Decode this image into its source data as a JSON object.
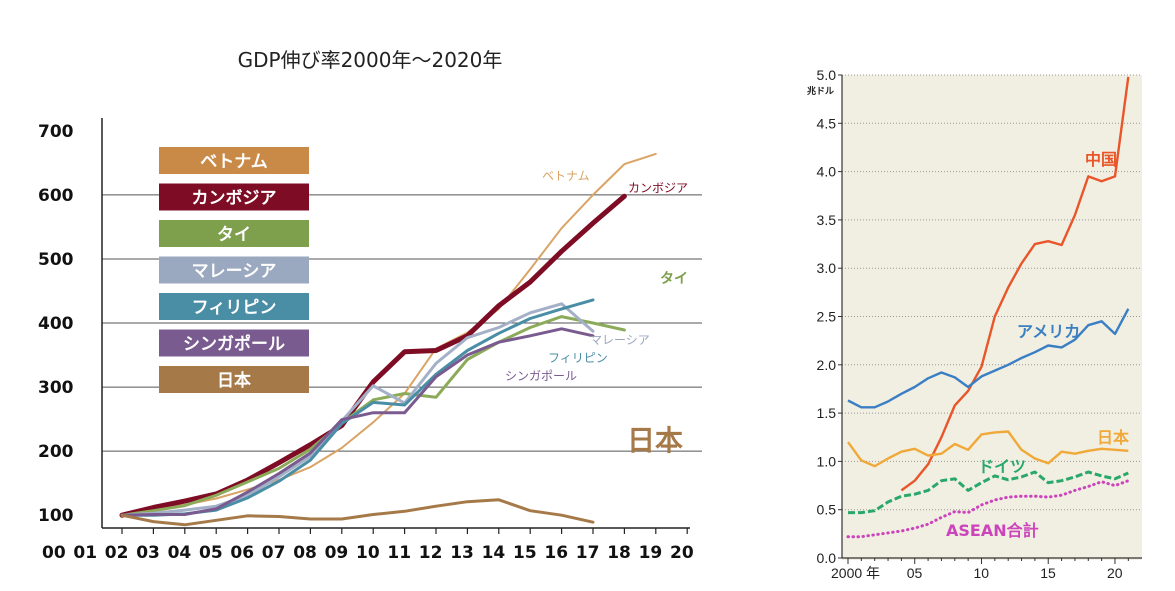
{
  "chart_data": [
    {
      "type": "line",
      "title": "GDP伸び率2000年～2020年",
      "x_tick_labels": [
        "00",
        "01",
        "02",
        "03",
        "04",
        "05",
        "06",
        "07",
        "08",
        "09",
        "10",
        "11",
        "12",
        "13",
        "14",
        "15",
        "16",
        "17",
        "18",
        "19",
        "20"
      ],
      "x": [
        2,
        3,
        4,
        5,
        6,
        7,
        8,
        9,
        10,
        11,
        12,
        13,
        14,
        15,
        16,
        17,
        18,
        19,
        20
      ],
      "y_ticks": [
        100,
        200,
        300,
        400,
        500,
        600,
        700
      ],
      "ylim": [
        80,
        720
      ],
      "grid": "horizontal",
      "legend": {
        "position": "top-left",
        "entries": [
          {
            "label": "ベトナム",
            "color": "#c98a48"
          },
          {
            "label": "カンボジア",
            "color": "#7d0c24"
          },
          {
            "label": "タイ",
            "color": "#7e9f4c"
          },
          {
            "label": "マレーシア",
            "color": "#9aa8c0"
          },
          {
            "label": "フィリピン",
            "color": "#4a8ea6"
          },
          {
            "label": "シンガポール",
            "color": "#7a5b90"
          },
          {
            "label": "日本",
            "color": "#a57a48"
          }
        ]
      },
      "series": [
        {
          "name": "ベトナム",
          "color": "#d9a466",
          "width": 2,
          "label": "ベトナム",
          "values": [
            100,
            110,
            116,
            126,
            140,
            155,
            175,
            205,
            245,
            290,
            360,
            385,
            422,
            484,
            548,
            600,
            648,
            664,
            null
          ]
        },
        {
          "name": "カンボジア",
          "color": "#7d0c24",
          "width": 5,
          "label": "カンボジア",
          "values": [
            100,
            112,
            122,
            133,
            155,
            182,
            210,
            240,
            308,
            355,
            357,
            380,
            427,
            464,
            512,
            556,
            598,
            null,
            null
          ]
        },
        {
          "name": "タイ",
          "color": "#8cab5a",
          "width": 3,
          "label": "タイ",
          "values": [
            100,
            107,
            115,
            131,
            152,
            173,
            203,
            244,
            280,
            290,
            284,
            343,
            370,
            393,
            410,
            400,
            389,
            null,
            null
          ]
        },
        {
          "name": "マレーシア",
          "color": "#a3b0c7",
          "width": 3,
          "label": "マレーシア",
          "values": [
            100,
            103,
            108,
            114,
            131,
            160,
            192,
            247,
            302,
            275,
            337,
            377,
            393,
            416,
            430,
            387,
            null,
            null,
            null
          ]
        },
        {
          "name": "フィリピン",
          "color": "#4a8ea6",
          "width": 3,
          "label": "フィリピン",
          "values": [
            100,
            100,
            102,
            108,
            127,
            153,
            186,
            243,
            276,
            272,
            320,
            357,
            384,
            407,
            422,
            436,
            null,
            null,
            null
          ]
        },
        {
          "name": "シンガポール",
          "color": "#7a5b90",
          "width": 3,
          "label": "シンガポール",
          "values": [
            100,
            101,
            101,
            110,
            136,
            165,
            197,
            249,
            260,
            260,
            316,
            350,
            370,
            380,
            391,
            380,
            null,
            null,
            null
          ]
        },
        {
          "name": "日本",
          "color": "#a57a48",
          "width": 3,
          "label": "日本",
          "values": [
            100,
            90,
            85,
            92,
            99,
            98,
            94,
            94,
            101,
            106,
            114,
            121,
            124,
            107,
            100,
            89,
            null,
            null,
            null
          ]
        }
      ]
    },
    {
      "type": "line",
      "ylabel": "兆ドル",
      "y_tick_labels": [
        "0.0",
        "0.5",
        "1.0",
        "1.5",
        "2.0",
        "2.5",
        "3.0",
        "3.5",
        "4.0",
        "4.5",
        "5.0"
      ],
      "ylim": [
        0,
        5.0
      ],
      "x_tick_labels": [
        "2000 年",
        "05",
        "10",
        "15",
        "20"
      ],
      "xlim": [
        2000,
        2021.5
      ],
      "grid": "horizontal dotted",
      "series": [
        {
          "name": "中国",
          "color": "#e8562a",
          "style": "solid",
          "label": "中国",
          "x": [
            2004,
            2005,
            2006,
            2007,
            2008,
            2009,
            2010,
            2011,
            2012,
            2013,
            2014,
            2015,
            2016,
            2017,
            2018,
            2019,
            2020,
            2021
          ],
          "values": [
            0.7,
            0.8,
            0.97,
            1.25,
            1.58,
            1.73,
            1.98,
            2.5,
            2.8,
            3.05,
            3.25,
            3.28,
            3.24,
            3.55,
            3.95,
            3.9,
            3.95,
            4.98
          ]
        },
        {
          "name": "アメリカ",
          "color": "#3a7fc4",
          "style": "solid",
          "label": "アメリカ",
          "x": [
            2000,
            2001,
            2002,
            2003,
            2004,
            2005,
            2006,
            2007,
            2008,
            2009,
            2010,
            2011,
            2012,
            2013,
            2014,
            2015,
            2016,
            2017,
            2018,
            2019,
            2020,
            2021
          ],
          "values": [
            1.63,
            1.56,
            1.56,
            1.62,
            1.7,
            1.77,
            1.86,
            1.92,
            1.87,
            1.77,
            1.88,
            1.94,
            2.0,
            2.07,
            2.13,
            2.2,
            2.18,
            2.26,
            2.41,
            2.45,
            2.32,
            2.58
          ]
        },
        {
          "name": "日本",
          "color": "#f0a938",
          "style": "solid",
          "label": "日本",
          "x": [
            2000,
            2001,
            2002,
            2003,
            2004,
            2005,
            2006,
            2007,
            2008,
            2009,
            2010,
            2011,
            2012,
            2013,
            2014,
            2015,
            2016,
            2017,
            2018,
            2019,
            2020,
            2021
          ],
          "values": [
            1.2,
            1.01,
            0.95,
            1.03,
            1.1,
            1.13,
            1.06,
            1.08,
            1.18,
            1.12,
            1.28,
            1.3,
            1.31,
            1.12,
            1.03,
            0.98,
            1.1,
            1.08,
            1.11,
            1.13,
            1.12,
            1.11
          ]
        },
        {
          "name": "ドイツ",
          "color": "#2aa86a",
          "style": "dashed",
          "label": "ドイツ",
          "x": [
            2000,
            2001,
            2002,
            2003,
            2004,
            2005,
            2006,
            2007,
            2008,
            2009,
            2010,
            2011,
            2012,
            2013,
            2014,
            2015,
            2016,
            2017,
            2018,
            2019,
            2020,
            2021
          ],
          "values": [
            0.47,
            0.47,
            0.49,
            0.58,
            0.64,
            0.66,
            0.7,
            0.8,
            0.82,
            0.7,
            0.78,
            0.85,
            0.81,
            0.84,
            0.89,
            0.78,
            0.8,
            0.84,
            0.89,
            0.85,
            0.82,
            0.88
          ]
        },
        {
          "name": "ASEAN合計",
          "color": "#cc44bb",
          "style": "dotted",
          "label": "ASEAN合計",
          "x": [
            2000,
            2001,
            2002,
            2003,
            2004,
            2005,
            2006,
            2007,
            2008,
            2009,
            2010,
            2011,
            2012,
            2013,
            2014,
            2015,
            2016,
            2017,
            2018,
            2019,
            2020,
            2021
          ],
          "values": [
            0.22,
            0.22,
            0.24,
            0.26,
            0.28,
            0.31,
            0.35,
            0.42,
            0.48,
            0.47,
            0.55,
            0.6,
            0.63,
            0.64,
            0.64,
            0.63,
            0.65,
            0.7,
            0.74,
            0.79,
            0.75,
            0.8
          ]
        }
      ]
    }
  ]
}
